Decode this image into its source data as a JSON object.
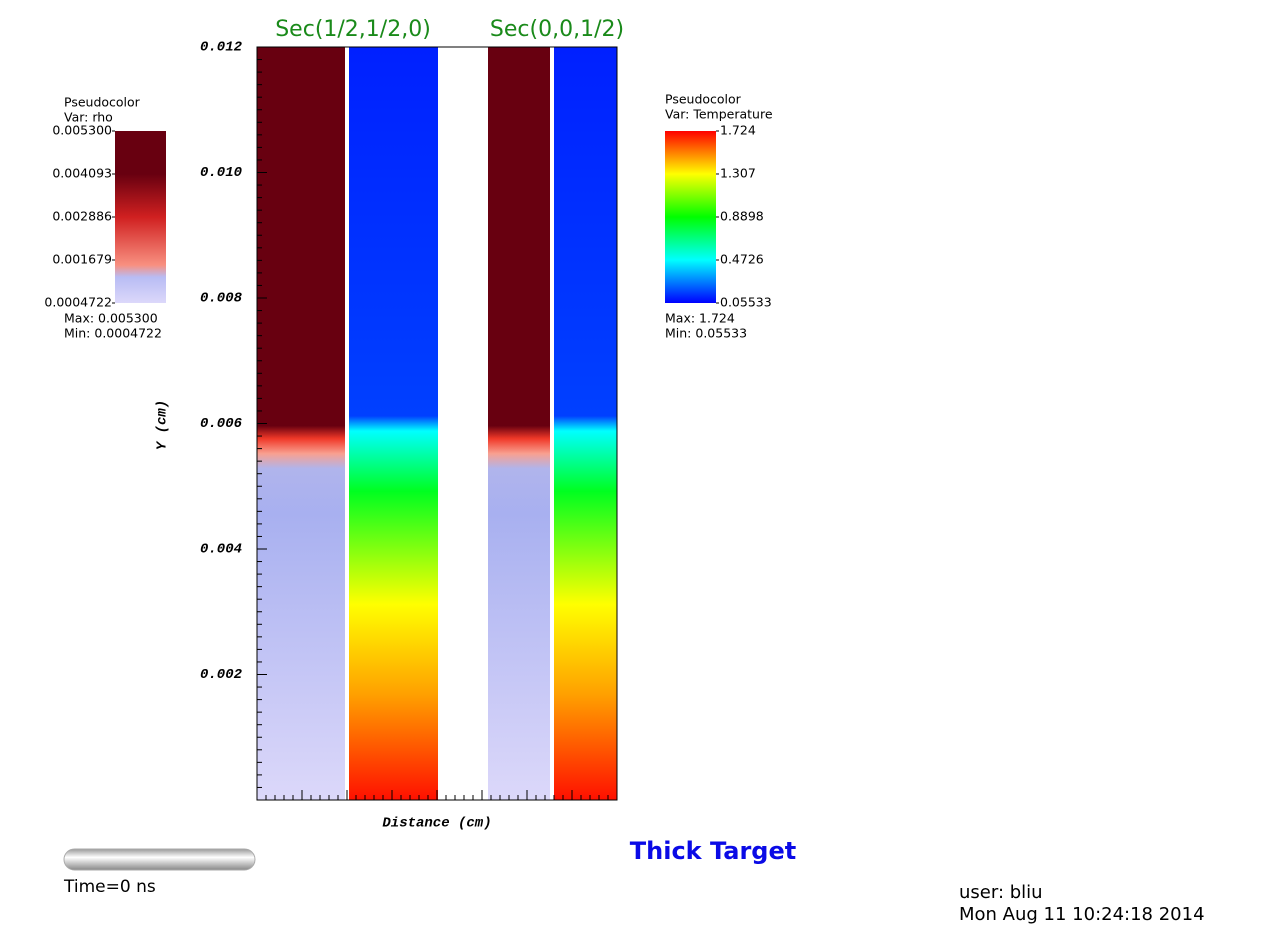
{
  "plot": {
    "title": "Thick Target",
    "sections": [
      "Sec(1/2,1/2,0)",
      "Sec(0,0,1/2)"
    ],
    "y_axis": {
      "label": "Y (cm)",
      "lim": [
        0,
        0.012
      ],
      "ticks": [
        0.002,
        0.004,
        0.006,
        0.008,
        {
          "value": 0.01,
          "label": "0.010"
        },
        0.012
      ]
    },
    "x_axis": {
      "label": "Distance (cm)"
    }
  },
  "legends": [
    {
      "kind": "Pseudocolor",
      "var": "Var: rho",
      "lim": [
        0.0004722,
        0.0053
      ],
      "ticks": [
        {
          "value": 0.0053,
          "label": "0.005300"
        },
        0.004093,
        0.002886,
        0.001679,
        0.0004722
      ],
      "max": "Max:  0.005300",
      "min": "Min:  0.0004722"
    },
    {
      "kind": "Pseudocolor",
      "var": "Var: Temperature",
      "lim": [
        0.05533,
        1.724
      ],
      "ticks": [
        1.724,
        1.307,
        0.8898,
        0.4726,
        0.05533
      ],
      "max": "Max:  1.724",
      "min": "Min:  0.05533"
    }
  ],
  "footer": {
    "time": "Time=0 ns",
    "user": "user: bliu",
    "date": "Mon Aug 11 10:24:18 2014"
  }
}
